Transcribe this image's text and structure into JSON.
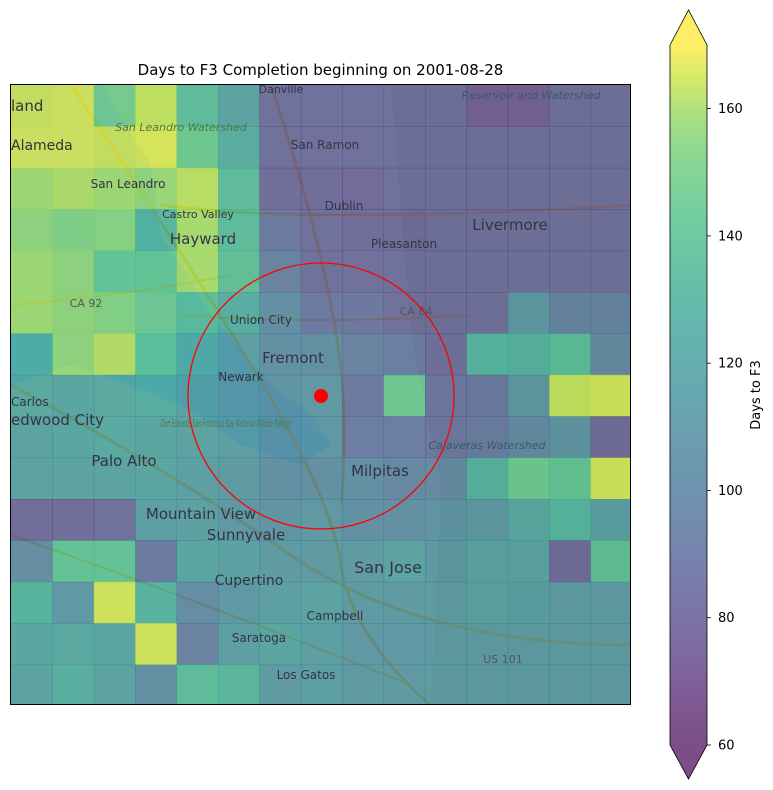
{
  "chart_data": {
    "type": "heatmap",
    "title": "Days to F3 Completion beginning on 2001-08-28",
    "colorbar": {
      "label": "Days to F3",
      "min": 60,
      "max": 170,
      "ticks": [
        60,
        80,
        100,
        120,
        140,
        160
      ],
      "extend": "both",
      "colormap": "viridis",
      "alpha": 0.7
    },
    "grid": {
      "rows": 15,
      "cols": 15,
      "values": [
        [
          165,
          166,
          148,
          163,
          135,
          118,
          84,
          84,
          84,
          84,
          84,
          76,
          76,
          84,
          84
        ],
        [
          166,
          166,
          165,
          166,
          145,
          124,
          84,
          84,
          84,
          84,
          84,
          84,
          84,
          84,
          84
        ],
        [
          160,
          162,
          160,
          158,
          162,
          135,
          82,
          82,
          80,
          84,
          84,
          84,
          84,
          84,
          84
        ],
        [
          158,
          155,
          157,
          132,
          160,
          135,
          90,
          84,
          82,
          82,
          84,
          84,
          84,
          84,
          84
        ],
        [
          160,
          158,
          145,
          145,
          160,
          138,
          95,
          84,
          84,
          84,
          84,
          84,
          84,
          84,
          84
        ],
        [
          160,
          158,
          156,
          148,
          138,
          125,
          105,
          90,
          88,
          84,
          84,
          84,
          110,
          96,
          96
        ],
        [
          128,
          158,
          163,
          142,
          125,
          115,
          105,
          105,
          95,
          92,
          84,
          130,
          128,
          135,
          100
        ],
        [
          122,
          120,
          122,
          125,
          118,
          112,
          108,
          110,
          90,
          145,
          88,
          90,
          110,
          163,
          165
        ],
        [
          118,
          120,
          122,
          120,
          118,
          115,
          108,
          110,
          92,
          92,
          88,
          92,
          100,
          108,
          82
        ],
        [
          118,
          118,
          118,
          120,
          115,
          112,
          105,
          105,
          105,
          100,
          100,
          128,
          145,
          140,
          165
        ],
        [
          82,
          82,
          84,
          115,
          116,
          110,
          108,
          110,
          105,
          105,
          108,
          110,
          120,
          130,
          115
        ],
        [
          103,
          140,
          140,
          90,
          120,
          116,
          112,
          112,
          112,
          118,
          110,
          118,
          118,
          82,
          138
        ],
        [
          130,
          110,
          165,
          128,
          102,
          110,
          115,
          118,
          112,
          112,
          112,
          118,
          115,
          112,
          112
        ],
        [
          120,
          122,
          120,
          165,
          95,
          115,
          120,
          115,
          110,
          110,
          112,
          112,
          112,
          112,
          112
        ],
        [
          118,
          126,
          118,
          105,
          135,
          132,
          112,
          115,
          112,
          112,
          112,
          112,
          112,
          112,
          112
        ]
      ]
    },
    "marker": {
      "label": "",
      "color": "#ff0000"
    },
    "basemap_labels": [
      "Danville",
      "Reservoir and Watershed",
      "land",
      "San Leandro Watershed",
      "Alameda",
      "San Ramon",
      "San Leandro",
      "Castro Valley",
      "Dublin",
      "Hayward",
      "Livermore",
      "Pleasanton",
      "CA 92",
      "CA 84",
      "Union City",
      "Fremont",
      "Newark",
      "Don Edwards San Francisco Bay National Wildlife Refuge",
      "Carlos",
      "edwood City",
      "Calaveras Watershed",
      "Palo Alto",
      "Milpitas",
      "Mountain View",
      "Sunnyvale",
      "San Jose",
      "Cupertino",
      "Campbell",
      "Saratoga",
      "Los Gatos",
      "US 101"
    ]
  }
}
